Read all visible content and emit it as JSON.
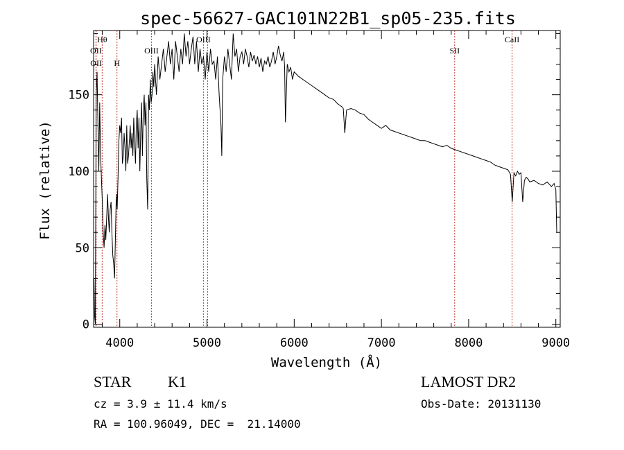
{
  "chart_data": {
    "type": "line",
    "title": "spec-56627-GAC101N22B1_sp05-235.fits",
    "xlabel": "Wavelength (Å)",
    "ylabel": "Flux (relative)",
    "xlim": [
      3700,
      9050
    ],
    "ylim": [
      -2,
      192
    ],
    "xticks": [
      4000,
      5000,
      6000,
      7000,
      8000,
      9000
    ],
    "xtick_labels": [
      "4000",
      "5000",
      "6000",
      "7000",
      "8000",
      "9000"
    ],
    "yticks": [
      0,
      50,
      100,
      150
    ],
    "ytick_labels": [
      "0",
      "50",
      "100",
      "150"
    ],
    "grid": false,
    "line_color": "#000000",
    "series": [
      {
        "x": [
          3705,
          3712,
          3720,
          3730,
          3740,
          3750,
          3760,
          3770,
          3780,
          3790,
          3800,
          3810,
          3820,
          3830,
          3840,
          3850,
          3860,
          3870,
          3880,
          3890,
          3900,
          3910,
          3920,
          3930,
          3940,
          3950,
          3960,
          3970,
          3980,
          3990,
          4000,
          4010,
          4020,
          4030,
          4040,
          4050,
          4060,
          4070,
          4080,
          4090,
          4100,
          4110,
          4120,
          4130,
          4140,
          4150,
          4160,
          4170,
          4180,
          4190,
          4200,
          4210,
          4220,
          4230,
          4240,
          4250,
          4260,
          4270,
          4280,
          4290,
          4300,
          4310,
          4320,
          4330,
          4340,
          4350,
          4360,
          4370,
          4380,
          4390,
          4400,
          4420,
          4440,
          4460,
          4480,
          4500,
          4520,
          4540,
          4560,
          4580,
          4600,
          4620,
          4640,
          4660,
          4680,
          4700,
          4720,
          4740,
          4760,
          4780,
          4800,
          4820,
          4840,
          4860,
          4880,
          4900,
          4920,
          4940,
          4960,
          4980,
          5000,
          5020,
          5040,
          5060,
          5080,
          5100,
          5120,
          5140,
          5160,
          5170,
          5180,
          5200,
          5220,
          5240,
          5260,
          5280,
          5300,
          5320,
          5340,
          5360,
          5380,
          5400,
          5420,
          5440,
          5460,
          5480,
          5500,
          5520,
          5540,
          5560,
          5580,
          5600,
          5620,
          5640,
          5660,
          5680,
          5700,
          5720,
          5740,
          5760,
          5780,
          5800,
          5820,
          5840,
          5860,
          5880,
          5890,
          5900,
          5920,
          5940,
          5960,
          5980,
          6000,
          6050,
          6100,
          6150,
          6200,
          6250,
          6300,
          6350,
          6400,
          6450,
          6500,
          6550,
          6563,
          6580,
          6600,
          6650,
          6700,
          6750,
          6800,
          6850,
          6900,
          6950,
          7000,
          7050,
          7100,
          7150,
          7200,
          7250,
          7300,
          7350,
          7400,
          7450,
          7500,
          7550,
          7600,
          7650,
          7700,
          7750,
          7800,
          7850,
          7900,
          7950,
          8000,
          8050,
          8100,
          8150,
          8200,
          8250,
          8300,
          8350,
          8400,
          8450,
          8480,
          8500,
          8520,
          8540,
          8560,
          8580,
          8600,
          8620,
          8640,
          8660,
          8680,
          8700,
          8750,
          8800,
          8850,
          8900,
          8950,
          8980,
          9000,
          9010
        ],
        "y": [
          30,
          5,
          0,
          150,
          165,
          130,
          100,
          145,
          110,
          95,
          80,
          60,
          50,
          65,
          55,
          70,
          85,
          70,
          60,
          75,
          80,
          60,
          45,
          40,
          30,
          55,
          85,
          75,
          95,
          120,
          130,
          125,
          135,
          105,
          110,
          125,
          115,
          100,
          130,
          105,
          110,
          120,
          130,
          115,
          125,
          110,
          135,
          120,
          105,
          130,
          140,
          115,
          135,
          100,
          125,
          145,
          110,
          140,
          150,
          130,
          145,
          95,
          75,
          150,
          140,
          160,
          145,
          150,
          165,
          155,
          170,
          150,
          175,
          160,
          170,
          180,
          165,
          175,
          185,
          170,
          180,
          160,
          185,
          175,
          165,
          180,
          170,
          190,
          175,
          185,
          170,
          180,
          188,
          170,
          185,
          165,
          180,
          170,
          175,
          160,
          178,
          165,
          180,
          170,
          172,
          160,
          175,
          150,
          130,
          110,
          160,
          175,
          165,
          180,
          170,
          160,
          190,
          175,
          180,
          165,
          175,
          178,
          170,
          180,
          175,
          168,
          178,
          172,
          176,
          170,
          175,
          168,
          174,
          165,
          172,
          170,
          175,
          168,
          172,
          178,
          170,
          175,
          182,
          176,
          172,
          178,
          168,
          132,
          170,
          165,
          168,
          160,
          165,
          162,
          160,
          158,
          156,
          154,
          152,
          150,
          148,
          147,
          144,
          142,
          141,
          125,
          140,
          141,
          140,
          138,
          137,
          134,
          132,
          130,
          128,
          130,
          127,
          126,
          125,
          124,
          123,
          122,
          121,
          120,
          120,
          119,
          118,
          117,
          116,
          117,
          115,
          114,
          113,
          112,
          111,
          110,
          109,
          108,
          107,
          106,
          104,
          103,
          102,
          101,
          98,
          80,
          99,
          97,
          100,
          98,
          99,
          80,
          94,
          96,
          95,
          93,
          94,
          92,
          91,
          93,
          90,
          92,
          88,
          60
        ]
      }
    ],
    "line_markers": [
      {
        "label": "Hθ",
        "x": 3798,
        "row": 0
      },
      {
        "label": "OII",
        "x": 3727,
        "row": 1
      },
      {
        "label": "OII",
        "x": 3729,
        "row": 2
      },
      {
        "label": "H",
        "x": 3968,
        "row": 2
      },
      {
        "label": "OIII",
        "x": 4363,
        "row": 1
      },
      {
        "label": "OIII",
        "x": 4959,
        "row": 0
      },
      {
        "label": "",
        "x": 5007,
        "row": 0
      },
      {
        "label": "SII",
        "x": 7840,
        "row": 1
      },
      {
        "label": "CaII",
        "x": 8498,
        "row": 0
      }
    ],
    "marker_color": "#c0392b"
  },
  "info": {
    "object_class": "STAR",
    "subclass": "K1",
    "survey": "LAMOST DR2",
    "redshift": "cz = 3.9 ± 11.4 km/s",
    "obs_date": "Obs-Date: 20131130",
    "coords": "RA = 100.96049, DEC =  21.14000"
  }
}
